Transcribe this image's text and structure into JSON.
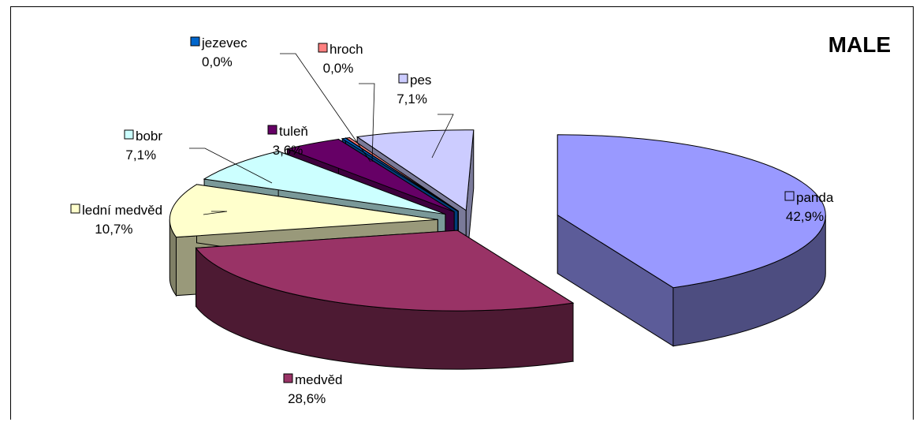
{
  "chart_data": {
    "type": "pie",
    "title": "MALE",
    "three_d": true,
    "exploded": true,
    "slices": [
      {
        "label": "panda",
        "value": 42.9,
        "value_label": "42,9%",
        "color": "#9999ff"
      },
      {
        "label": "medvěd",
        "value": 28.6,
        "value_label": "28,6%",
        "color": "#993366"
      },
      {
        "label": "lední medvěd",
        "value": 10.7,
        "value_label": "10,7%",
        "color": "#ffffcc"
      },
      {
        "label": "bobr",
        "value": 7.1,
        "value_label": "7,1%",
        "color": "#ccffff"
      },
      {
        "label": "tuleň",
        "value": 3.6,
        "value_label": "3,6%",
        "color": "#660066"
      },
      {
        "label": "jezevec",
        "value": 0.0,
        "value_label": "0,0%",
        "color": "#0066cc"
      },
      {
        "label": "hroch",
        "value": 0.0,
        "value_label": "0,0%",
        "color": "#ff8080"
      },
      {
        "label": "pes",
        "value": 7.1,
        "value_label": "7,1%",
        "color": "#ccccff"
      }
    ]
  }
}
